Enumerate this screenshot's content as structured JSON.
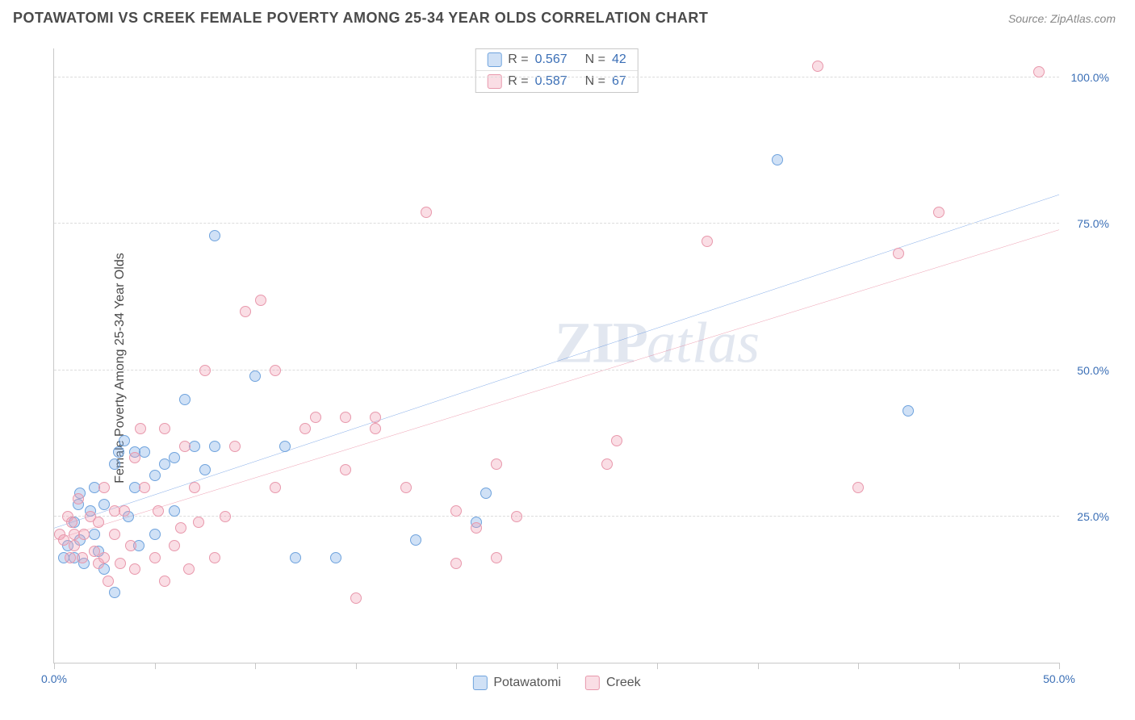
{
  "title": "POTAWATOMI VS CREEK FEMALE POVERTY AMONG 25-34 YEAR OLDS CORRELATION CHART",
  "source": "Source: ZipAtlas.com",
  "ylabel": "Female Poverty Among 25-34 Year Olds",
  "watermark_zip": "ZIP",
  "watermark_atlas": "atlas",
  "chart": {
    "type": "scatter",
    "xlim": [
      0,
      50
    ],
    "ylim": [
      0,
      105
    ],
    "xtick_positions": [
      0,
      5,
      10,
      15,
      20,
      25,
      30,
      35,
      40,
      45,
      50
    ],
    "xtick_labels": {
      "0": "0.0%",
      "50": "50.0%"
    },
    "ytick_positions": [
      25,
      50,
      75,
      100
    ],
    "ytick_labels": {
      "25": "25.0%",
      "50": "50.0%",
      "75": "75.0%",
      "100": "100.0%"
    },
    "background_color": "#ffffff",
    "grid_color": "#dcdcdc",
    "axis_color": "#c8c8c8",
    "label_color": "#3b6fb6",
    "marker_radius": 7,
    "marker_stroke_width": 1.5,
    "line_width": 2.5,
    "series": [
      {
        "name": "Potawatomi",
        "fill": "rgba(120,170,230,0.35)",
        "stroke": "#6fa3dd",
        "line_color": "#2a6fd6",
        "R": "0.567",
        "N": "42",
        "trend": {
          "x1": 0,
          "y1": 23,
          "x2": 50,
          "y2": 80
        },
        "points": [
          [
            0.5,
            18
          ],
          [
            0.7,
            20
          ],
          [
            1,
            18
          ],
          [
            1,
            24
          ],
          [
            1.2,
            27
          ],
          [
            1.3,
            21
          ],
          [
            1.3,
            29
          ],
          [
            1.5,
            17
          ],
          [
            1.8,
            26
          ],
          [
            2,
            22
          ],
          [
            2,
            30
          ],
          [
            2.2,
            19
          ],
          [
            2.5,
            16
          ],
          [
            2.5,
            27
          ],
          [
            3,
            34
          ],
          [
            3,
            12
          ],
          [
            3.2,
            36
          ],
          [
            3.5,
            38
          ],
          [
            3.7,
            25
          ],
          [
            4,
            36
          ],
          [
            4,
            30
          ],
          [
            4.2,
            20
          ],
          [
            4.5,
            36
          ],
          [
            5,
            32
          ],
          [
            5,
            22
          ],
          [
            5.5,
            34
          ],
          [
            6,
            35
          ],
          [
            6,
            26
          ],
          [
            6.5,
            45
          ],
          [
            7,
            37
          ],
          [
            7.5,
            33
          ],
          [
            8,
            73
          ],
          [
            8,
            37
          ],
          [
            10,
            49
          ],
          [
            11.5,
            37
          ],
          [
            12,
            18
          ],
          [
            14,
            18
          ],
          [
            18,
            21
          ],
          [
            21,
            24
          ],
          [
            21.5,
            29
          ],
          [
            36,
            86
          ],
          [
            42.5,
            43
          ]
        ]
      },
      {
        "name": "Creek",
        "fill": "rgba(240,160,180,0.35)",
        "stroke": "#e898ac",
        "line_color": "#e05a7a",
        "R": "0.587",
        "N": "67",
        "trend": {
          "x1": 0,
          "y1": 21,
          "x2": 50,
          "y2": 74
        },
        "points": [
          [
            0.3,
            22
          ],
          [
            0.5,
            21
          ],
          [
            0.7,
            25
          ],
          [
            0.8,
            18
          ],
          [
            0.9,
            24
          ],
          [
            1,
            22
          ],
          [
            1,
            20
          ],
          [
            1.2,
            28
          ],
          [
            1.4,
            18
          ],
          [
            1.5,
            22
          ],
          [
            1.8,
            25
          ],
          [
            2,
            19
          ],
          [
            2.2,
            17
          ],
          [
            2.2,
            24
          ],
          [
            2.5,
            18
          ],
          [
            2.5,
            30
          ],
          [
            2.7,
            14
          ],
          [
            3,
            22
          ],
          [
            3,
            26
          ],
          [
            3.3,
            17
          ],
          [
            3.5,
            26
          ],
          [
            3.8,
            20
          ],
          [
            4,
            35
          ],
          [
            4,
            16
          ],
          [
            4.3,
            40
          ],
          [
            4.5,
            30
          ],
          [
            5,
            18
          ],
          [
            5.2,
            26
          ],
          [
            5.5,
            40
          ],
          [
            5.5,
            14
          ],
          [
            6,
            20
          ],
          [
            6.3,
            23
          ],
          [
            6.5,
            37
          ],
          [
            6.7,
            16
          ],
          [
            7,
            30
          ],
          [
            7.2,
            24
          ],
          [
            7.5,
            50
          ],
          [
            8,
            18
          ],
          [
            8.5,
            25
          ],
          [
            9,
            37
          ],
          [
            9.5,
            60
          ],
          [
            10.3,
            62
          ],
          [
            11,
            30
          ],
          [
            11,
            50
          ],
          [
            12.5,
            40
          ],
          [
            13,
            42
          ],
          [
            14.5,
            42
          ],
          [
            14.5,
            33
          ],
          [
            15,
            11
          ],
          [
            16,
            42
          ],
          [
            16,
            40
          ],
          [
            17.5,
            30
          ],
          [
            18.5,
            77
          ],
          [
            20,
            17
          ],
          [
            20,
            26
          ],
          [
            21,
            23
          ],
          [
            22,
            18
          ],
          [
            22,
            34
          ],
          [
            23,
            25
          ],
          [
            27.5,
            34
          ],
          [
            28,
            38
          ],
          [
            32.5,
            72
          ],
          [
            38,
            102
          ],
          [
            40,
            30
          ],
          [
            42,
            70
          ],
          [
            44,
            77
          ],
          [
            49,
            101
          ]
        ]
      }
    ]
  }
}
